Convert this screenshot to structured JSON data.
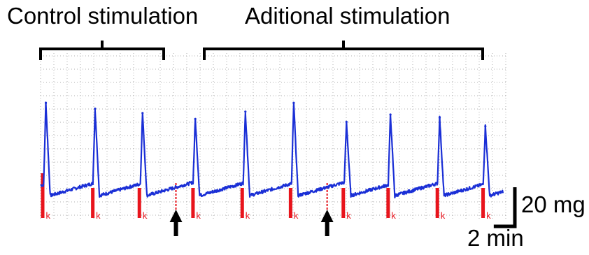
{
  "chart_data": {
    "type": "line",
    "annotations": {
      "control_label": "Control stimulation",
      "additional_label": "Aditional stimulation"
    },
    "scale_bar": {
      "y_label": "20 mg",
      "y_value_mg": 20,
      "x_label": "2 min",
      "x_value_min": 2
    },
    "stimulus_marker_label": "k",
    "grid": true,
    "series": [
      {
        "color": "#1a2fd6",
        "contraction_peak_times_min": [
          0.6,
          6.2,
          11.6,
          17.6,
          23.3,
          28.8,
          34.8,
          39.8,
          45.4,
          50.6
        ],
        "peak_amplitudes_mg": [
          68,
          64,
          61,
          57,
          62,
          68,
          55,
          60,
          58,
          52
        ]
      }
    ],
    "stimulus_markers_min": [
      0.2,
      5.9,
      11.2,
      17.3,
      22.9,
      28.4,
      34.4,
      39.5,
      45.1,
      50.3
    ],
    "additional_stimulation_arrows_min": [
      15.4,
      32.6
    ],
    "colors": {
      "trace": "#1a2fd6",
      "stimulus": "#e8141c",
      "grid": "#b0b0b0"
    }
  }
}
